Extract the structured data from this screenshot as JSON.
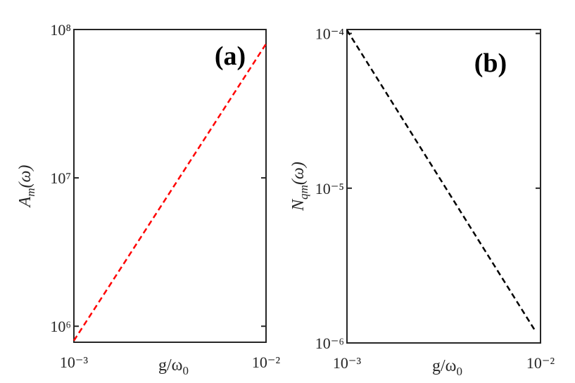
{
  "chart_data": [
    {
      "type": "line",
      "annotation": "(a)",
      "xlabel": {
        "base": "g/ω",
        "sub": "0"
      },
      "ylabel": {
        "base": "A",
        "sub": "m",
        "tail": "(ω)"
      },
      "x": [
        0.001,
        0.01
      ],
      "series": [
        {
          "values": [
            800000,
            80000000
          ],
          "color": "#ff0000"
        }
      ],
      "log_x": true,
      "log_y": true,
      "xlim": [
        0.001,
        0.01
      ],
      "ylim": [
        780000,
        100000000
      ],
      "xticks": [
        {
          "value": 0.001,
          "label": "10⁻³"
        },
        {
          "value": 0.01,
          "label": "10⁻²"
        }
      ],
      "yticks": [
        {
          "value": 1000000,
          "label": "10⁶"
        },
        {
          "value": 10000000,
          "label": "10⁷"
        },
        {
          "value": 100000000,
          "label": "10⁸"
        }
      ]
    },
    {
      "type": "line",
      "annotation": "(b)",
      "xlabel": {
        "base": "g/ω",
        "sub": "0"
      },
      "ylabel": {
        "base": "N",
        "sub": "qm",
        "tail": "(ω)"
      },
      "x": [
        0.001,
        0.0093
      ],
      "series": [
        {
          "values": [
            0.000105,
            1.22e-06
          ],
          "color": "#000000"
        }
      ],
      "log_x": true,
      "log_y": true,
      "xlim": [
        0.001,
        0.01
      ],
      "ylim": [
        1e-06,
        0.000106
      ],
      "xticks": [
        {
          "value": 0.001,
          "label": "10⁻³"
        },
        {
          "value": 0.01,
          "label": "10⁻²"
        }
      ],
      "yticks": [
        {
          "value": 1e-06,
          "label": "10⁻⁶"
        },
        {
          "value": 1e-05,
          "label": "10⁻⁵"
        },
        {
          "value": 0.0001,
          "label": "10⁻⁴"
        }
      ]
    }
  ]
}
